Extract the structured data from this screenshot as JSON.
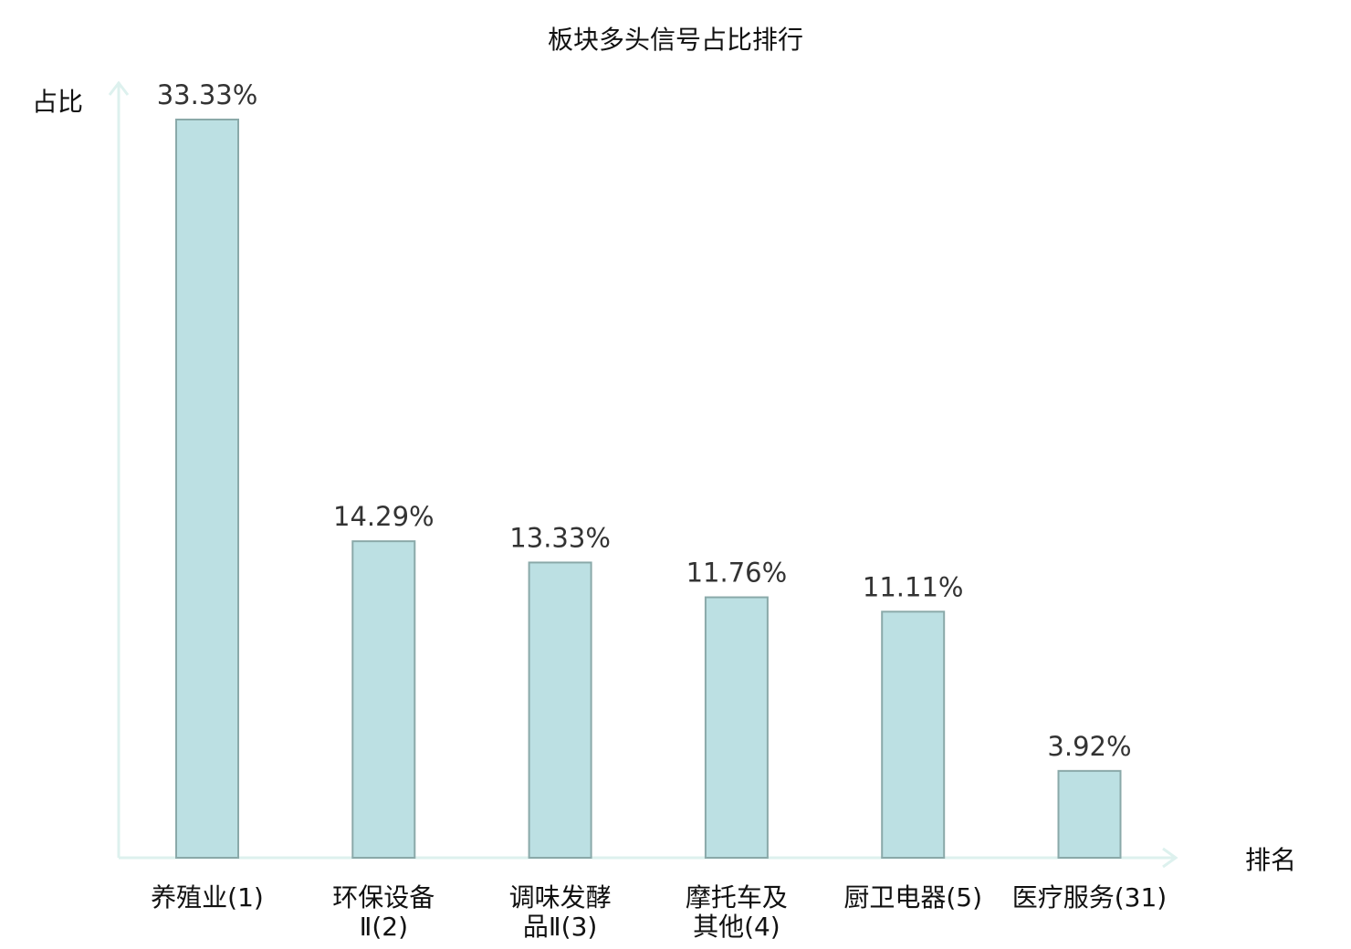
{
  "chart_data": {
    "type": "bar",
    "title": "板块多头信号占比排行",
    "ylabel": "占比",
    "xlabel": "排名",
    "ylim": [
      0,
      33.33
    ],
    "grid": false,
    "categories": [
      [
        "养殖业(1)"
      ],
      [
        "环保设备",
        "Ⅱ(2)"
      ],
      [
        "调味发酵",
        "品Ⅱ(3)"
      ],
      [
        "摩托车及",
        "其他(4)"
      ],
      [
        "厨卫电器(5)"
      ],
      [
        "医疗服务(31)"
      ]
    ],
    "values": [
      33.33,
      14.29,
      13.33,
      11.76,
      11.11,
      3.92
    ],
    "value_labels": [
      "33.33%",
      "14.29%",
      "13.33%",
      "11.76%",
      "11.11%",
      "3.92%"
    ],
    "category_colors": [
      "#111111",
      "#111111",
      "#111111",
      "#111111",
      "#111111",
      "#e8141b"
    ],
    "colors": {
      "bar_fill": "#bce0e3",
      "bar_stroke": "#8aa9a9",
      "axis": "#ddf1ee",
      "value_text": "#333333"
    }
  }
}
